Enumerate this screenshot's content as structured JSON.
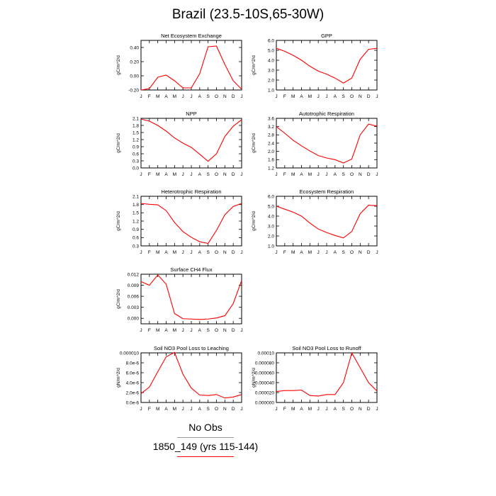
{
  "title": "Brazil (23.5-10S,65-30W)",
  "months": [
    "J",
    "F",
    "M",
    "A",
    "M",
    "J",
    "J",
    "A",
    "S",
    "O",
    "N",
    "D",
    "J"
  ],
  "legend": {
    "obs_label": "No Obs",
    "model_label": "1850_149 (yrs 115-144)",
    "model_color": "#ff0000",
    "obs_color": "#9a9a9a"
  },
  "chart_data": [
    {
      "type": "line",
      "title": "Net Ecosystem Exchange",
      "ylabel": "gC/m^2/d",
      "ylim": [
        -0.2,
        0.5
      ],
      "yticks": [
        "-0.20",
        "0.00",
        "0.20",
        "0.40"
      ],
      "ytick_values": [
        -0.2,
        0.0,
        0.2,
        0.4
      ],
      "values": [
        -0.2,
        -0.18,
        -0.02,
        0.01,
        -0.07,
        -0.17,
        -0.17,
        0.03,
        0.41,
        0.42,
        0.16,
        -0.07,
        -0.19
      ]
    },
    {
      "type": "line",
      "title": "GPP",
      "ylabel": "gC/m^2/d",
      "ylim": [
        1.0,
        6.0
      ],
      "yticks": [
        "1.0",
        "2.0",
        "3.0",
        "4.0",
        "5.0",
        "6.0"
      ],
      "ytick_values": [
        1,
        2,
        3,
        4,
        5,
        6
      ],
      "values": [
        5.2,
        4.9,
        4.5,
        4.0,
        3.4,
        2.9,
        2.6,
        2.2,
        1.7,
        2.2,
        4.1,
        5.1,
        5.2
      ]
    },
    {
      "type": "line",
      "title": "NPP",
      "ylabel": "gC/m^2/d",
      "ylim": [
        0.0,
        2.1
      ],
      "yticks": [
        "0.0",
        "0.3",
        "0.6",
        "0.9",
        "1.2",
        "1.5",
        "1.8",
        "2.1"
      ],
      "ytick_values": [
        0,
        0.3,
        0.6,
        0.9,
        1.2,
        1.5,
        1.8,
        2.1
      ],
      "values": [
        2.07,
        1.98,
        1.8,
        1.56,
        1.27,
        1.05,
        0.87,
        0.58,
        0.28,
        0.6,
        1.33,
        1.77,
        2.04
      ]
    },
    {
      "type": "line",
      "title": "Autotrophic Respiration",
      "ylabel": "gC/m^2/d",
      "ylim": [
        1.2,
        3.6
      ],
      "yticks": [
        "1.2",
        "1.6",
        "2.0",
        "2.4",
        "2.8",
        "3.2",
        "3.6"
      ],
      "ytick_values": [
        1.2,
        1.6,
        2.0,
        2.4,
        2.8,
        3.2,
        3.6
      ],
      "values": [
        3.2,
        2.88,
        2.54,
        2.27,
        2.02,
        1.8,
        1.68,
        1.6,
        1.44,
        1.63,
        2.8,
        3.32,
        3.22
      ]
    },
    {
      "type": "line",
      "title": "Heterotrophic Respiration",
      "ylabel": "gC/m^2/d",
      "ylim": [
        0.3,
        2.1
      ],
      "yticks": [
        "0.3",
        "0.6",
        "0.9",
        "1.2",
        "1.5",
        "1.8",
        "2.1"
      ],
      "ytick_values": [
        0.3,
        0.6,
        0.9,
        1.2,
        1.5,
        1.8,
        2.1
      ],
      "values": [
        1.84,
        1.81,
        1.79,
        1.58,
        1.15,
        0.82,
        0.61,
        0.45,
        0.39,
        0.86,
        1.43,
        1.73,
        1.84
      ]
    },
    {
      "type": "line",
      "title": "Ecosystem Respiration",
      "ylabel": "gC/m^2/d",
      "ylim": [
        1.0,
        6.0
      ],
      "yticks": [
        "1.0",
        "2.0",
        "3.0",
        "4.0",
        "5.0",
        "6.0"
      ],
      "ytick_values": [
        1,
        2,
        3,
        4,
        5,
        6
      ],
      "values": [
        5.0,
        4.7,
        4.4,
        4.0,
        3.3,
        2.7,
        2.35,
        2.05,
        1.8,
        2.45,
        4.25,
        5.1,
        5.05
      ]
    },
    {
      "type": "line",
      "title": "Surface CH4 Flux",
      "ylabel": "gC/m^2/d",
      "ylim": [
        -0.0015,
        0.012
      ],
      "yticks": [
        "0.000",
        "0.003",
        "0.006",
        "0.009",
        "0.012"
      ],
      "ytick_values": [
        0,
        0.003,
        0.006,
        0.009,
        0.012
      ],
      "values": [
        0.01,
        0.009,
        0.0118,
        0.0093,
        0.0013,
        -0.0001,
        -0.0002,
        -0.0003,
        -0.0002,
        0.0001,
        0.0007,
        0.004,
        0.0103
      ]
    },
    {
      "type": "line",
      "title": "Soil NO3 Pool Loss to Leaching",
      "ylabel": "gN/m^2/d",
      "ylim": [
        0,
        1e-05
      ],
      "yticks": [
        "0.0e-6",
        "2.0e-6",
        "4.0e-6",
        "6.0e-6",
        "8.0e-6",
        "0.000010"
      ],
      "ytick_values": [
        0,
        2e-06,
        4e-06,
        6e-06,
        8e-06,
        1e-05
      ],
      "values": [
        1.8e-06,
        3.1e-06,
        6.2e-06,
        9.2e-06,
        1.01e-05,
        5.7e-06,
        2.9e-06,
        1.5e-06,
        1.4e-06,
        1.6e-06,
        9e-07,
        1.1e-06,
        1.6e-06
      ]
    },
    {
      "type": "line",
      "title": "Soil NO3 Pool Loss to Runoff",
      "ylabel": "gN/m^2/d",
      "ylim": [
        0,
        0.0001
      ],
      "yticks": [
        "0.000000",
        "0.000020",
        "0.000040",
        "0.000060",
        "0.000080",
        "0.00010"
      ],
      "ytick_values": [
        0,
        2e-05,
        4e-05,
        6e-05,
        8e-05,
        0.0001
      ],
      "values": [
        2.2e-05,
        2.4e-05,
        2.4e-05,
        2.5e-05,
        1.4e-05,
        1.3e-05,
        1.6e-05,
        1.6e-05,
        4e-05,
        0.0001,
        7e-05,
        4e-05,
        2.3e-05
      ]
    }
  ]
}
